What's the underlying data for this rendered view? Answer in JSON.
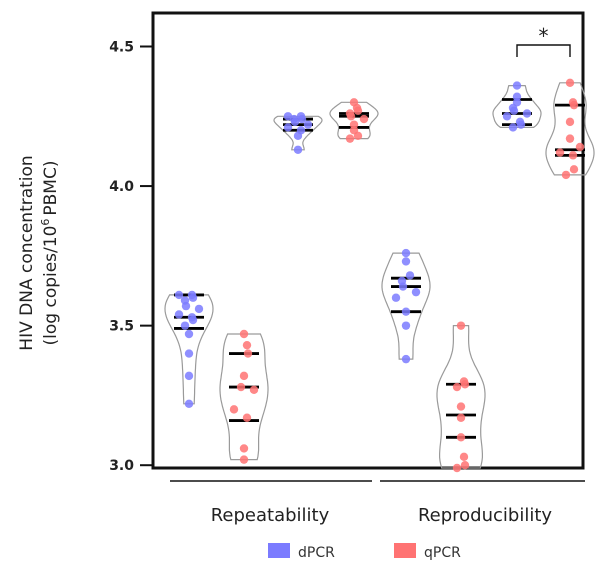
{
  "chart_data": {
    "type": "scatter",
    "subtype": "violin-dot",
    "ylabel_line1": "HIV DNA concentration",
    "ylabel_line2_prefix": "(log copies/10",
    "ylabel_line2_sup": "6",
    "ylabel_line2_suffix": "PBMC)",
    "ylim": [
      2.99,
      4.62
    ],
    "yticks": [
      "3.0",
      "3.5",
      "4.0",
      "4.5"
    ],
    "grid": false,
    "legend_position": "bottom",
    "groups": [
      "Repeatability",
      "Reproducibility"
    ],
    "legend": [
      {
        "label": "dPCR",
        "color": "#7b7bff"
      },
      {
        "label": "qPCR",
        "color": "#ff7373"
      }
    ],
    "significance": {
      "label": "*",
      "between": [
        "dPCR",
        "qPCR"
      ],
      "group": "Reproducibility",
      "level": "high"
    },
    "violins": [
      {
        "group": "Repeatability",
        "level": "low",
        "series": "dPCR",
        "points": [
          3.61,
          3.61,
          3.6,
          3.59,
          3.57,
          3.56,
          3.54,
          3.53,
          3.52,
          3.5,
          3.47,
          3.4,
          3.32,
          3.22
        ],
        "median": 3.53,
        "q1": 3.49,
        "q3": 3.61
      },
      {
        "group": "Repeatability",
        "level": "low",
        "series": "qPCR",
        "points": [
          3.47,
          3.43,
          3.4,
          3.32,
          3.28,
          3.27,
          3.2,
          3.17,
          3.06,
          3.02
        ],
        "median": 3.28,
        "q1": 3.16,
        "q3": 3.4
      },
      {
        "group": "Repeatability",
        "level": "high",
        "series": "dPCR",
        "points": [
          4.25,
          4.25,
          4.24,
          4.24,
          4.23,
          4.22,
          4.21,
          4.2,
          4.18,
          4.13
        ],
        "median": 4.22,
        "q1": 4.2,
        "q3": 4.24
      },
      {
        "group": "Repeatability",
        "level": "high",
        "series": "qPCR",
        "points": [
          4.3,
          4.28,
          4.27,
          4.26,
          4.25,
          4.24,
          4.22,
          4.2,
          4.18,
          4.17
        ],
        "median": 4.25,
        "q1": 4.21,
        "q3": 4.26
      },
      {
        "group": "Reproducibility",
        "level": "low",
        "series": "dPCR",
        "points": [
          3.76,
          3.73,
          3.68,
          3.66,
          3.64,
          3.62,
          3.6,
          3.55,
          3.5,
          3.38
        ],
        "median": 3.64,
        "q1": 3.55,
        "q3": 3.67
      },
      {
        "group": "Reproducibility",
        "level": "low",
        "series": "qPCR",
        "points": [
          3.5,
          3.3,
          3.29,
          3.28,
          3.21,
          3.17,
          3.1,
          3.03,
          3.0,
          2.99
        ],
        "median": 3.18,
        "q1": 3.1,
        "q3": 3.29
      },
      {
        "group": "Reproducibility",
        "level": "high",
        "series": "dPCR",
        "points": [
          4.36,
          4.32,
          4.3,
          4.28,
          4.27,
          4.26,
          4.25,
          4.23,
          4.22,
          4.21
        ],
        "median": 4.26,
        "q1": 4.22,
        "q3": 4.31
      },
      {
        "group": "Reproducibility",
        "level": "high",
        "series": "qPCR",
        "points": [
          4.37,
          4.3,
          4.29,
          4.23,
          4.17,
          4.14,
          4.12,
          4.11,
          4.06,
          4.04
        ],
        "median": 4.13,
        "q1": 4.11,
        "q3": 4.29
      }
    ]
  }
}
